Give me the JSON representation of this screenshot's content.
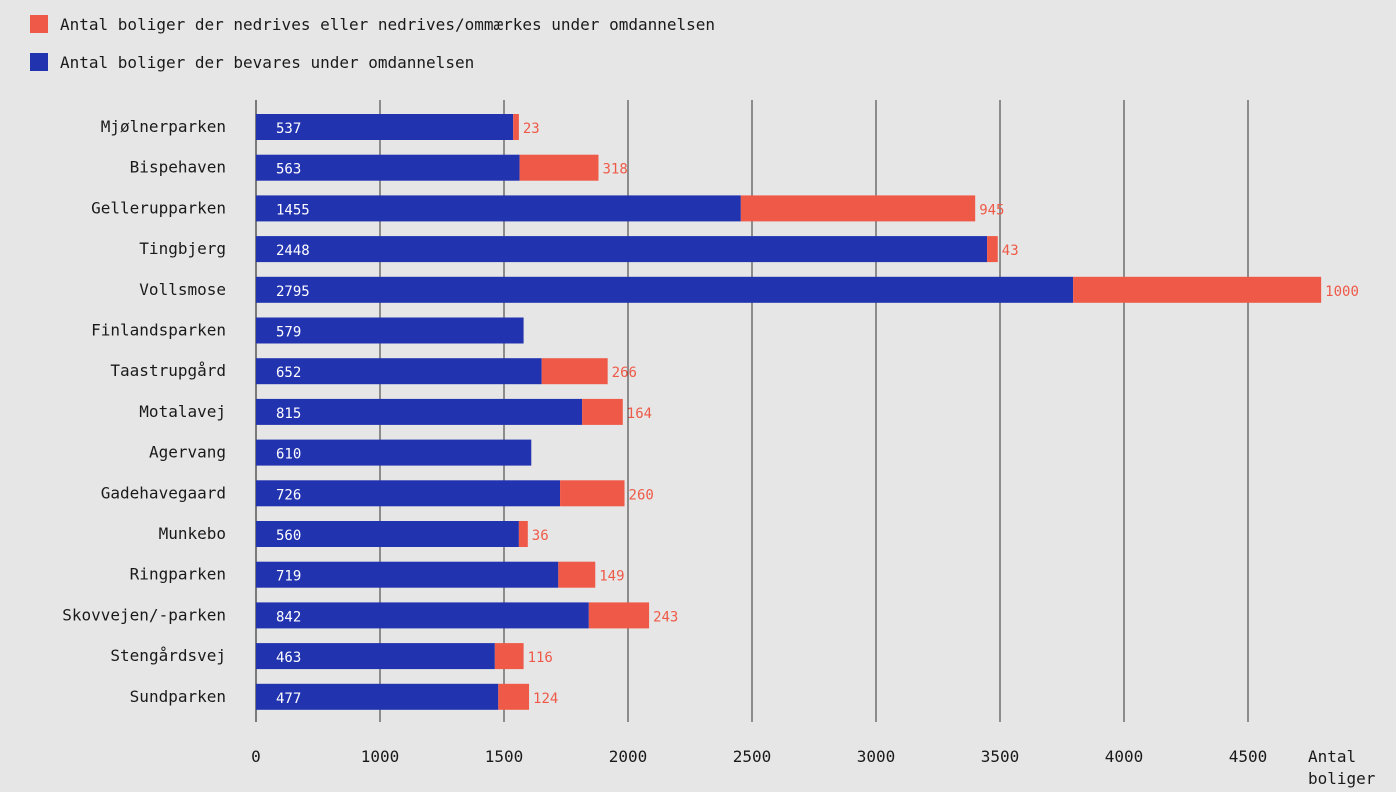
{
  "colors": {
    "preserved": "#2233b0",
    "demolished": "#ef5a48",
    "background": "#e6e6e6",
    "grid": "#333333",
    "text": "#1a1a1a"
  },
  "legend": {
    "demolished_label": "Antal boliger der nedrives eller nedrives/ommærkes under omdannelsen",
    "preserved_label": "Antal boliger der bevares under omdannelsen"
  },
  "chart_data": {
    "type": "bar",
    "orientation": "horizontal",
    "stacked": true,
    "categories": [
      "Mjølnerparken",
      "Bispehaven",
      "Gellerupparken",
      "Tingbjerg",
      "Vollsmose",
      "Finlandsparken",
      "Taastrupgård",
      "Motalavej",
      "Agervang",
      "Gadehavegaard",
      "Munkebo",
      "Ringparken",
      "Skovvejen/-parken",
      "Stengårdsvej",
      "Sundparken"
    ],
    "series": [
      {
        "name": "Antal boliger der bevares under omdannelsen",
        "values": [
          537,
          563,
          1455,
          2448,
          2795,
          579,
          652,
          815,
          610,
          726,
          560,
          719,
          842,
          463,
          477
        ],
        "labels": [
          "537",
          "563",
          "1455",
          "2448",
          "2795",
          "579",
          "652",
          "815",
          "610",
          "726",
          "560",
          "719",
          "842",
          "463",
          "477"
        ]
      },
      {
        "name": "Antal boliger der nedrives eller nedrives/ommærkes under omdannelsen",
        "values": [
          23,
          318,
          945,
          43,
          1000,
          null,
          266,
          164,
          null,
          260,
          36,
          149,
          243,
          116,
          124
        ],
        "labels": [
          "23",
          "318",
          "945",
          "43",
          "1000",
          "",
          "266",
          "164",
          "",
          "260",
          "36",
          "149",
          "243",
          "116",
          "124"
        ]
      }
    ],
    "xticks": [
      "0",
      "1000",
      "1500",
      "2000",
      "2500",
      "3000",
      "3500",
      "4000",
      "4500"
    ],
    "xlabel": "Antal boliger",
    "xlim": [
      0,
      4500
    ],
    "grid": true,
    "legend_position": "top-left"
  }
}
